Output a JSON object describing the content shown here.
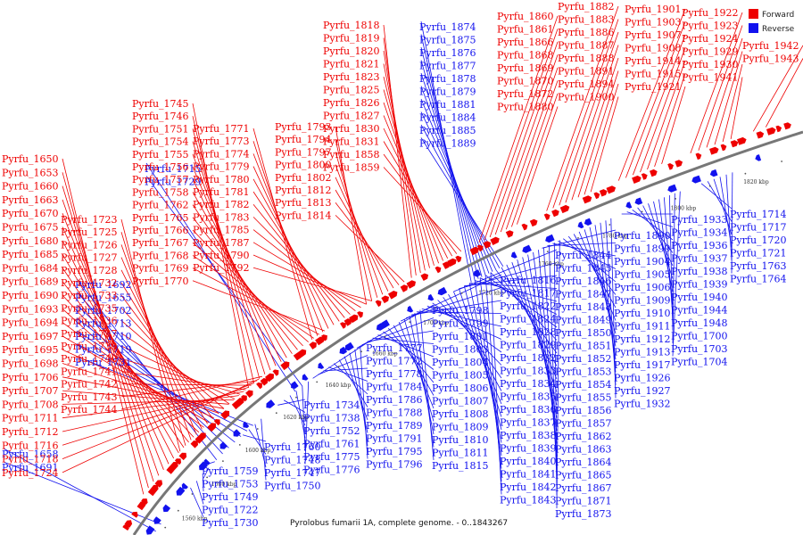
{
  "colors": {
    "forward": "#ee0000",
    "reverse": "#1212ee",
    "backbone": "#777777",
    "text": "#111111"
  },
  "legend": {
    "forward_label": "Forward",
    "reverse_label": "Reverse"
  },
  "caption": "Pyrolobus fumarii 1A, complete genome. - 0..1843267",
  "axis_labels": [
    "1560 kbp",
    "1580 kbp",
    "1600 kbp",
    "1620 kbp",
    "1640 kbp",
    "1660 kbp",
    "1700 kbp",
    "1720 kbp",
    "1760 kbp",
    "1780 kbp",
    "1800 kbp",
    "1820 kbp"
  ],
  "forward_genes": [
    "Pyrfu_1650",
    "Pyrfu_1653",
    "Pyrfu_1660",
    "Pyrfu_1663",
    "Pyrfu_1670",
    "Pyrfu_1675",
    "Pyrfu_1680",
    "Pyrfu_1685",
    "Pyrfu_1684",
    "Pyrfu_1689",
    "Pyrfu_1690",
    "Pyrfu_1693",
    "Pyrfu_1694",
    "Pyrfu_1697",
    "Pyrfu_1695",
    "Pyrfu_1698",
    "Pyrfu_1706",
    "Pyrfu_1707",
    "Pyrfu_1708",
    "Pyrfu_1711",
    "Pyrfu_1712",
    "Pyrfu_1716",
    "Pyrfu_1718",
    "Pyrfu_1724",
    "Pyrfu_1723",
    "Pyrfu_1725",
    "Pyrfu_1726",
    "Pyrfu_1727",
    "Pyrfu_1728",
    "Pyrfu_1732",
    "Pyrfu_1733",
    "Pyrfu_1735",
    "Pyrfu_1736",
    "Pyrfu_1737",
    "Pyrfu_1739",
    "Pyrfu_1740",
    "Pyrfu_1741",
    "Pyrfu_1742",
    "Pyrfu_1743",
    "Pyrfu_1744",
    "Pyrfu_1745",
    "Pyrfu_1746",
    "Pyrfu_1751",
    "Pyrfu_1754",
    "Pyrfu_1755",
    "Pyrfu_1756",
    "Pyrfu_1757",
    "Pyrfu_1758",
    "Pyrfu_1762",
    "Pyrfu_1765",
    "Pyrfu_1766",
    "Pyrfu_1767",
    "Pyrfu_1768",
    "Pyrfu_1769",
    "Pyrfu_1770",
    "Pyrfu_1771",
    "Pyrfu_1773",
    "Pyrfu_1774",
    "Pyrfu_1779",
    "Pyrfu_1780",
    "Pyrfu_1781",
    "Pyrfu_1782",
    "Pyrfu_1783",
    "Pyrfu_1785",
    "Pyrfu_1787",
    "Pyrfu_1790",
    "Pyrfu_1792",
    "Pyrfu_1793",
    "Pyrfu_1794",
    "Pyrfu_1797",
    "Pyrfu_1800",
    "Pyrfu_1802",
    "Pyrfu_1812",
    "Pyrfu_1813",
    "Pyrfu_1814",
    "Pyrfu_1818",
    "Pyrfu_1819",
    "Pyrfu_1820",
    "Pyrfu_1821",
    "Pyrfu_1823",
    "Pyrfu_1825",
    "Pyrfu_1826",
    "Pyrfu_1827",
    "Pyrfu_1830",
    "Pyrfu_1831",
    "Pyrfu_1858",
    "Pyrfu_1859",
    "Pyrfu_1860",
    "Pyrfu_1861",
    "Pyrfu_1866",
    "Pyrfu_1868",
    "Pyrfu_1869",
    "Pyrfu_1870",
    "Pyrfu_1872",
    "Pyrfu_1880",
    "Pyrfu_1882",
    "Pyrfu_1883",
    "Pyrfu_1886",
    "Pyrfu_1887",
    "Pyrfu_1888",
    "Pyrfu_1891",
    "Pyrfu_1894",
    "Pyrfu_1900",
    "Pyrfu_1901",
    "Pyrfu_1903",
    "Pyrfu_1907",
    "Pyrfu_1908",
    "Pyrfu_1914",
    "Pyrfu_1915",
    "Pyrfu_1921",
    "Pyrfu_1922",
    "Pyrfu_1923",
    "Pyrfu_1924",
    "Pyrfu_1929",
    "Pyrfu_1930",
    "Pyrfu_1941",
    "Pyrfu_1942",
    "Pyrfu_1943"
  ],
  "reverse_genes": [
    "Pyrfu_1658",
    "Pyrfu_1691",
    "Pyrfu_1692",
    "Pyrfu_1655",
    "Pyrfu_1702",
    "Pyrfu_1713",
    "Pyrfu_1710",
    "Pyrfu_1719",
    "Pyrfu_1731",
    "Pyrfu_1715",
    "Pyrfu_1729",
    "Pyrfu_1730",
    "Pyrfu_1722",
    "Pyrfu_1749",
    "Pyrfu_1753",
    "Pyrfu_1759",
    "Pyrfu_1760",
    "Pyrfu_1748",
    "Pyrfu_1747",
    "Pyrfu_1750",
    "Pyrfu_1734",
    "Pyrfu_1738",
    "Pyrfu_1752",
    "Pyrfu_1761",
    "Pyrfu_1775",
    "Pyrfu_1776",
    "Pyrfu_1777",
    "Pyrfu_1772",
    "Pyrfu_1778",
    "Pyrfu_1784",
    "Pyrfu_1786",
    "Pyrfu_1788",
    "Pyrfu_1789",
    "Pyrfu_1791",
    "Pyrfu_1795",
    "Pyrfu_1796",
    "Pyrfu_1798",
    "Pyrfu_1799",
    "Pyrfu_1801",
    "Pyrfu_1803",
    "Pyrfu_1804",
    "Pyrfu_1805",
    "Pyrfu_1806",
    "Pyrfu_1807",
    "Pyrfu_1808",
    "Pyrfu_1809",
    "Pyrfu_1810",
    "Pyrfu_1811",
    "Pyrfu_1815",
    "Pyrfu_1816",
    "Pyrfu_1817",
    "Pyrfu_1822",
    "Pyrfu_1824",
    "Pyrfu_1828",
    "Pyrfu_1829",
    "Pyrfu_1832",
    "Pyrfu_1833",
    "Pyrfu_1834",
    "Pyrfu_1835",
    "Pyrfu_1836",
    "Pyrfu_1837",
    "Pyrfu_1838",
    "Pyrfu_1839",
    "Pyrfu_1840",
    "Pyrfu_1841",
    "Pyrfu_1842",
    "Pyrfu_1843",
    "Pyrfu_1844",
    "Pyrfu_1845",
    "Pyrfu_1846",
    "Pyrfu_1847",
    "Pyrfu_1848",
    "Pyrfu_1849",
    "Pyrfu_1850",
    "Pyrfu_1851",
    "Pyrfu_1852",
    "Pyrfu_1853",
    "Pyrfu_1854",
    "Pyrfu_1855",
    "Pyrfu_1856",
    "Pyrfu_1857",
    "Pyrfu_1862",
    "Pyrfu_1863",
    "Pyrfu_1864",
    "Pyrfu_1865",
    "Pyrfu_1867",
    "Pyrfu_1871",
    "Pyrfu_1873",
    "Pyrfu_1874",
    "Pyrfu_1875",
    "Pyrfu_1876",
    "Pyrfu_1877",
    "Pyrfu_1878",
    "Pyrfu_1879",
    "Pyrfu_1881",
    "Pyrfu_1884",
    "Pyrfu_1885",
    "Pyrfu_1889",
    "Pyrfu_1890",
    "Pyrfu_1899",
    "Pyrfu_1904",
    "Pyrfu_1905",
    "Pyrfu_1906",
    "Pyrfu_1909",
    "Pyrfu_1910",
    "Pyrfu_1911",
    "Pyrfu_1912",
    "Pyrfu_1913",
    "Pyrfu_1917",
    "Pyrfu_1926",
    "Pyrfu_1927",
    "Pyrfu_1932",
    "Pyrfu_1933",
    "Pyrfu_1934",
    "Pyrfu_1936",
    "Pyrfu_1937",
    "Pyrfu_1938",
    "Pyrfu_1939",
    "Pyrfu_1940",
    "Pyrfu_1944",
    "Pyrfu_1948",
    "Pyrfu_1700",
    "Pyrfu_1703",
    "Pyrfu_1704",
    "Pyrfu_1714",
    "Pyrfu_1717",
    "Pyrfu_1720",
    "Pyrfu_1721",
    "Pyrfu_1763",
    "Pyrfu_1764"
  ]
}
